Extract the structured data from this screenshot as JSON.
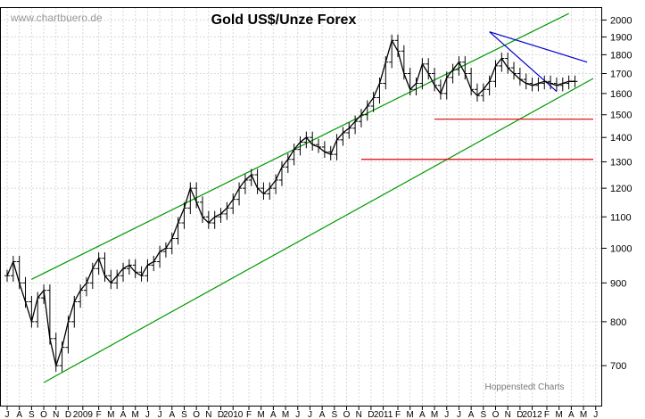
{
  "chart_data": {
    "type": "line",
    "title": "Gold US$/Unze Forex",
    "watermark": "www.chartbuero.de",
    "source": "Hoppenstedt Charts",
    "y_scale": "log",
    "ylim": [
      620,
      2080
    ],
    "yticks": [
      700,
      800,
      900,
      1000,
      1100,
      1200,
      1300,
      1400,
      1500,
      1600,
      1700,
      1800,
      1900,
      2000
    ],
    "xlim": [
      0,
      48
    ],
    "x_labels": [
      "J",
      "A",
      "S",
      "O",
      "N",
      "D",
      "2009",
      "F",
      "M",
      "A",
      "M",
      "J",
      "J",
      "A",
      "S",
      "O",
      "N",
      "D",
      "2010",
      "F",
      "M",
      "A",
      "M",
      "J",
      "J",
      "A",
      "S",
      "O",
      "N",
      "D",
      "2011",
      "F",
      "M",
      "A",
      "M",
      "J",
      "J",
      "A",
      "S",
      "O",
      "N",
      "D",
      "2012",
      "F",
      "M",
      "A",
      "M",
      "J"
    ],
    "x_label_positions": [
      0.0,
      1.0,
      2.0,
      3.0,
      4.0,
      5.0,
      6.2,
      7.5,
      8.5,
      9.5,
      10.5,
      11.5,
      12.5,
      13.5,
      14.5,
      15.5,
      16.5,
      17.5,
      18.5,
      19.8,
      20.8,
      21.8,
      22.8,
      23.8,
      24.8,
      25.8,
      26.8,
      27.8,
      28.8,
      29.8,
      30.8,
      32.0,
      33.0,
      34.0,
      35.0,
      36.0,
      37.0,
      38.0,
      39.0,
      40.0,
      41.0,
      42.0,
      43.0,
      44.2,
      45.2,
      46.2,
      47.2,
      48.2
    ],
    "grid": true,
    "series": [
      {
        "style": "ohlc",
        "x": [
          0.0,
          0.5,
          1.0,
          1.5,
          2.0,
          2.5,
          3.0,
          3.5,
          4.0,
          4.5,
          5.0,
          5.5,
          6.0,
          6.5,
          7.0,
          7.5,
          8.0,
          8.5,
          9.0,
          9.5,
          10.0,
          10.5,
          11.0,
          11.5,
          12.0,
          12.5,
          13.0,
          13.5,
          14.0,
          14.5,
          15.0,
          15.5,
          16.0,
          16.5,
          17.0,
          17.5,
          18.0,
          18.5,
          19.0,
          19.5,
          20.0,
          20.5,
          21.0,
          21.5,
          22.0,
          22.5,
          23.0,
          23.5,
          24.0,
          24.5,
          25.0,
          25.5,
          26.0,
          26.5,
          27.0,
          27.5,
          28.0,
          28.5,
          29.0,
          29.5,
          30.0,
          30.5,
          31.0,
          31.5,
          32.0,
          32.5,
          33.0,
          33.5,
          34.0,
          34.5,
          35.0,
          35.5,
          36.0,
          36.5,
          37.0,
          37.5,
          38.0,
          38.5,
          39.0,
          39.5,
          40.0,
          40.5,
          41.0,
          41.5,
          42.0,
          42.5,
          43.0,
          43.5,
          44.0,
          44.5,
          45.0,
          45.5,
          46.0,
          46.5
        ],
        "values": [
          920,
          960,
          900,
          850,
          800,
          860,
          880,
          760,
          700,
          740,
          800,
          850,
          880,
          900,
          940,
          970,
          920,
          900,
          920,
          940,
          950,
          930,
          920,
          950,
          960,
          990,
          1000,
          1030,
          1080,
          1130,
          1200,
          1150,
          1100,
          1080,
          1100,
          1110,
          1130,
          1160,
          1200,
          1230,
          1250,
          1200,
          1180,
          1200,
          1230,
          1280,
          1310,
          1350,
          1380,
          1400,
          1370,
          1360,
          1340,
          1330,
          1390,
          1420,
          1440,
          1470,
          1500,
          1540,
          1580,
          1650,
          1760,
          1880,
          1820,
          1700,
          1620,
          1650,
          1750,
          1700,
          1640,
          1600,
          1680,
          1720,
          1760,
          1700,
          1620,
          1590,
          1620,
          1660,
          1740,
          1780,
          1730,
          1700,
          1670,
          1650,
          1640,
          1650,
          1660,
          1650,
          1640,
          1650,
          1660,
          1660
        ]
      }
    ],
    "annotations": {
      "channel_upper": {
        "color": "#009900",
        "x": [
          2.0,
          46.0
        ],
        "y": [
          910,
          2040
        ]
      },
      "channel_lower": {
        "color": "#009900",
        "x": [
          3.0,
          48.0
        ],
        "y": [
          665,
          1675
        ]
      },
      "resistance_1310": {
        "color": "#dd0000",
        "x": [
          29.0,
          48.0
        ],
        "y": [
          1310,
          1310
        ]
      },
      "resistance_1480": {
        "color": "#dd0000",
        "x": [
          35.0,
          48.0
        ],
        "y": [
          1480,
          1480
        ]
      },
      "downtrend_long": {
        "color": "#0000cc",
        "x": [
          39.5,
          47.5
        ],
        "y": [
          1930,
          1760
        ]
      },
      "downtrend_short": {
        "color": "#0000cc",
        "x": [
          39.5,
          45.0
        ],
        "y": [
          1930,
          1610
        ]
      }
    }
  }
}
